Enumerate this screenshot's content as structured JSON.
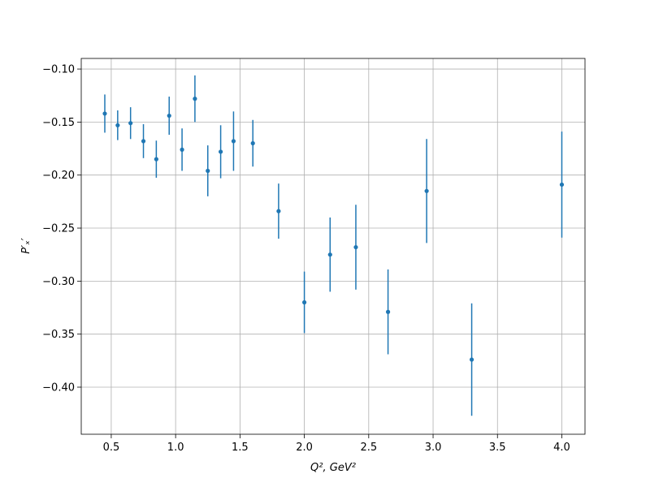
{
  "chart_data": {
    "type": "errorbar",
    "xlabel": "Q², GeV²",
    "ylabel": "P′ₓ′",
    "x": [
      0.45,
      0.55,
      0.65,
      0.75,
      0.85,
      0.95,
      1.05,
      1.15,
      1.25,
      1.35,
      1.45,
      1.6,
      1.8,
      2.0,
      2.2,
      2.4,
      2.65,
      2.95,
      3.3,
      4.0
    ],
    "values": [
      -0.142,
      -0.153,
      -0.151,
      -0.168,
      -0.185,
      -0.144,
      -0.176,
      -0.128,
      -0.196,
      -0.178,
      -0.168,
      -0.17,
      -0.234,
      -0.32,
      -0.275,
      -0.268,
      -0.329,
      -0.215,
      -0.374,
      -0.209
    ],
    "errors": [
      0.018,
      0.014,
      0.015,
      0.016,
      0.0175,
      0.018,
      0.02,
      0.022,
      0.024,
      0.025,
      0.028,
      0.022,
      0.026,
      0.029,
      0.035,
      0.04,
      0.04,
      0.049,
      0.053,
      0.05
    ],
    "color": "#1f77b4",
    "xlim": [
      0.267,
      4.18
    ],
    "ylim": [
      -0.4444,
      -0.09
    ],
    "xticks": [
      0.5,
      {
        "value": 1.0,
        "label": "1.0"
      },
      1.5,
      {
        "value": 2.0,
        "label": "2.0"
      },
      2.5,
      {
        "value": 3.0,
        "label": "3.0"
      },
      3.5,
      {
        "value": 4.0,
        "label": "4.0"
      }
    ],
    "yticks": [
      {
        "value": -0.1,
        "label": "−0.10"
      },
      {
        "value": -0.15,
        "label": "−0.15"
      },
      {
        "value": -0.2,
        "label": "−0.20"
      },
      {
        "value": -0.25,
        "label": "−0.25"
      },
      {
        "value": -0.3,
        "label": "−0.30"
      },
      {
        "value": -0.35,
        "label": "−0.35"
      },
      {
        "value": -0.4,
        "label": "−0.40"
      }
    ],
    "grid": true
  }
}
